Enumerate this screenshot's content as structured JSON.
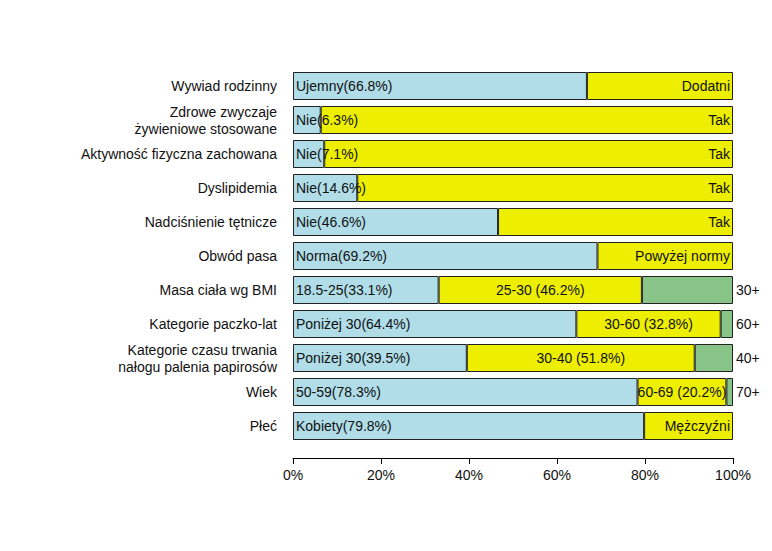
{
  "chart_data": {
    "type": "bar",
    "orientation": "horizontal",
    "stacked": true,
    "grid": false,
    "categories": [
      "Wywiad rodzinny",
      "Zdrowe zwyczaje\nżywieniowe stosowane",
      "Aktywność fizyczna zachowana",
      "Dyslipidemia",
      "Nadciśnienie tętnicze",
      "Obwód pasa",
      "Masa ciała wg BMI",
      "Kategorie paczko-lat",
      "Kategorie czasu trwania\nnałogu palenia papirosów",
      "Wiek",
      "Płeć"
    ],
    "series": [
      {
        "color": "#b0dde8",
        "values": [
          66.8,
          6.3,
          7.1,
          14.6,
          46.6,
          69.2,
          33.1,
          64.4,
          39.5,
          78.3,
          79.8
        ],
        "value_labels": [
          "Ujemny(66.8%)",
          "Nie(6.3%)",
          "Nie(7.1%)",
          "Nie(14.6%)",
          "Nie(46.6%)",
          "Norma(69.2%)",
          "18.5-25(33.1%)",
          "Poniżej 30(64.4%)",
          "Poniżej 30(39.5%)",
          "50-59(78.3%)",
          "Kobiety(79.8%)"
        ]
      },
      {
        "color": "#eeee00",
        "values": [
          33.2,
          93.7,
          92.9,
          85.4,
          53.4,
          30.8,
          46.2,
          32.8,
          51.8,
          20.2,
          20.2
        ],
        "value_labels": [
          "Dodatni",
          "Tak",
          "Tak",
          "Tak",
          "Tak",
          "Powyżej normy",
          "25-30 (46.2%)",
          "30-60 (32.8%)",
          "30-40 (51.8%)",
          "60-69 (20.2%)",
          "Mężczyźni"
        ]
      },
      {
        "color": "#88c488",
        "values": [
          null,
          null,
          null,
          null,
          null,
          null,
          20.7,
          2.8,
          8.7,
          1.5,
          null
        ],
        "value_labels": [
          null,
          null,
          null,
          null,
          null,
          null,
          "30+",
          "60+",
          "40+",
          "70+",
          null
        ]
      }
    ],
    "xlim": [
      0,
      100
    ],
    "xticks": [
      {
        "value": 0,
        "label": "0%"
      },
      {
        "value": 20,
        "label": "20%"
      },
      {
        "value": 40,
        "label": "40%"
      },
      {
        "value": 60,
        "label": "60%"
      },
      {
        "value": 80,
        "label": "80%"
      },
      {
        "value": 100,
        "label": "100%"
      }
    ]
  }
}
